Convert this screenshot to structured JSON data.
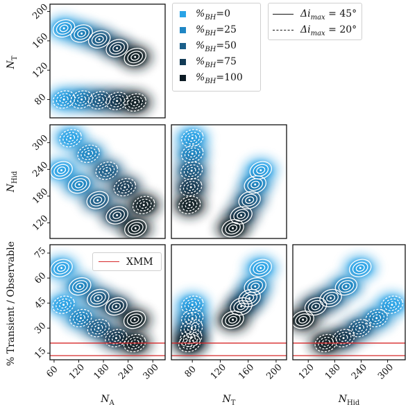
{
  "legend": {
    "bh_entries": [
      {
        "label": "%BH=0",
        "prefix": "%",
        "sub": "BH",
        "value": "=0",
        "color": "#29a3e6"
      },
      {
        "label": "%BH=25",
        "prefix": "%",
        "sub": "BH",
        "value": "=25",
        "color": "#1f86c4"
      },
      {
        "label": "%BH=50",
        "prefix": "%",
        "sub": "BH",
        "value": "=50",
        "color": "#1a5f8a"
      },
      {
        "label": "%BH=75",
        "prefix": "%",
        "sub": "BH",
        "value": "=75",
        "color": "#123b55"
      },
      {
        "label": "%BH=100",
        "prefix": "%",
        "sub": "BH",
        "value": "=100",
        "color": "#0b1a24"
      }
    ],
    "line_entries": [
      {
        "label": "Δi_max = 45°",
        "style": "solid",
        "main": "Δi",
        "sub": "max",
        "rest": " = 45°"
      },
      {
        "label": "Δi_max = 20°",
        "style": "dashed",
        "main": "Δi",
        "sub": "max",
        "rest": " = 20°"
      }
    ]
  },
  "xmm_legend": {
    "label": "XMM",
    "color": "#d62728"
  },
  "chart_data": [
    {
      "type": "scatter",
      "panel": "NA vs NT",
      "ylabel": "N_T",
      "xlim": [
        50,
        330
      ],
      "ylim": [
        55,
        210
      ],
      "yticks": [
        80,
        120,
        160,
        200
      ],
      "series": [
        {
          "name": "Δi_max = 45°",
          "style": "solid",
          "points": [
            [
              84,
              177
            ],
            [
              127,
              170
            ],
            [
              170,
              162
            ],
            [
              213,
              150
            ],
            [
              257,
              138
            ]
          ]
        },
        {
          "name": "Δi_max = 20°",
          "style": "dashed",
          "points": [
            [
              84,
              80
            ],
            [
              127,
              80
            ],
            [
              170,
              79
            ],
            [
              213,
              78
            ],
            [
              257,
              76
            ]
          ]
        }
      ]
    },
    {
      "type": "scatter",
      "panel": "NA vs NHid",
      "ylabel": "N_Hid",
      "xlim": [
        50,
        330
      ],
      "ylim": [
        85,
        340
      ],
      "yticks": [
        120,
        180,
        240,
        300
      ],
      "series": [
        {
          "name": "Δi_max = 45°",
          "style": "solid",
          "points": [
            [
              78,
              238
            ],
            [
              121,
              206
            ],
            [
              166,
              171
            ],
            [
              213,
              137
            ],
            [
              258,
              108
            ]
          ]
        },
        {
          "name": "Δi_max = 20°",
          "style": "dashed",
          "points": [
            [
              100,
              310
            ],
            [
              144,
              275
            ],
            [
              188,
              237
            ],
            [
              232,
              200
            ],
            [
              278,
              160
            ]
          ]
        }
      ]
    },
    {
      "type": "scatter",
      "panel": "NT vs NHid",
      "xlim": [
        50,
        215
      ],
      "ylim": [
        85,
        340
      ],
      "series": [
        {
          "name": "Δi_max = 45°",
          "style": "solid",
          "points": [
            [
              178,
              238
            ],
            [
              170,
              206
            ],
            [
              162,
              171
            ],
            [
              150,
              137
            ],
            [
              138,
              108
            ]
          ]
        },
        {
          "name": "Δi_max = 20°",
          "style": "dashed",
          "points": [
            [
              80,
              310
            ],
            [
              80,
              275
            ],
            [
              79,
              237
            ],
            [
              78,
              200
            ],
            [
              76,
              160
            ]
          ]
        }
      ]
    },
    {
      "type": "scatter",
      "panel": "NA vs % Transient / Observable",
      "xlabel": "N_A",
      "ylabel": "% Transient / Observable",
      "xlim": [
        50,
        330
      ],
      "ylim": [
        11,
        80
      ],
      "xticks": [
        60,
        120,
        180,
        240,
        300
      ],
      "yticks": [
        15,
        30,
        45,
        60,
        75
      ],
      "hlines": [
        21,
        13.5
      ],
      "series": [
        {
          "name": "Δi_max = 45°",
          "style": "solid",
          "points": [
            [
              78,
              66
            ],
            [
              123,
              55
            ],
            [
              167,
              48
            ],
            [
              211,
              43
            ],
            [
              256,
              35
            ]
          ]
        },
        {
          "name": "Δi_max = 20°",
          "style": "dashed",
          "points": [
            [
              83,
              44
            ],
            [
              125,
              36
            ],
            [
              168,
              30
            ],
            [
              211,
              24
            ],
            [
              256,
              21
            ]
          ]
        }
      ]
    },
    {
      "type": "scatter",
      "panel": "NT vs % Transient / Observable",
      "xlabel": "N_T",
      "xlim": [
        50,
        215
      ],
      "ylim": [
        11,
        80
      ],
      "xticks": [
        80,
        120,
        160,
        200
      ],
      "hlines": [
        21,
        13.5
      ],
      "series": [
        {
          "name": "Δi_max = 45°",
          "style": "solid",
          "points": [
            [
              178,
              66
            ],
            [
              170,
              55
            ],
            [
              162,
              48
            ],
            [
              150,
              43
            ],
            [
              138,
              35
            ]
          ]
        },
        {
          "name": "Δi_max = 20°",
          "style": "dashed",
          "points": [
            [
              80,
              44
            ],
            [
              80,
              36
            ],
            [
              79,
              30
            ],
            [
              78,
              24
            ],
            [
              76,
              21
            ]
          ]
        }
      ]
    },
    {
      "type": "scatter",
      "panel": "NHid vs % Transient / Observable",
      "xlabel": "N_Hid",
      "xlim": [
        85,
        340
      ],
      "ylim": [
        11,
        80
      ],
      "xticks": [
        120,
        180,
        240,
        300
      ],
      "hlines": [
        21,
        13.5
      ],
      "series": [
        {
          "name": "Δi_max = 45°",
          "style": "solid",
          "points": [
            [
              238,
              66
            ],
            [
              206,
              55
            ],
            [
              171,
              48
            ],
            [
              137,
              43
            ],
            [
              108,
              35
            ]
          ]
        },
        {
          "name": "Δi_max = 20°",
          "style": "dashed",
          "points": [
            [
              310,
              44
            ],
            [
              275,
              36
            ],
            [
              237,
              30
            ],
            [
              200,
              24
            ],
            [
              160,
              21
            ]
          ]
        }
      ]
    }
  ]
}
